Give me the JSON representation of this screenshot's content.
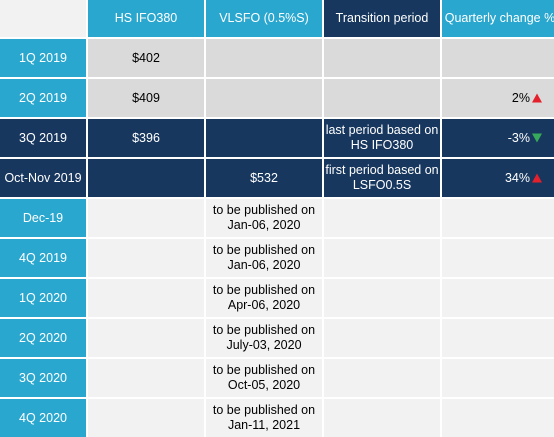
{
  "headers": [
    "",
    "HS IFO380",
    "VLSFO (0.5%S)",
    "Transition period",
    "Quarterly change %"
  ],
  "rows": [
    {
      "period": "1Q 2019",
      "hs": "$402",
      "vlsfo": "",
      "transition": "",
      "change": "",
      "arrow": ""
    },
    {
      "period": "2Q 2019",
      "hs": "$409",
      "vlsfo": "",
      "transition": "",
      "change": "2%",
      "arrow": "triangle-up-icon"
    },
    {
      "period": "3Q 2019",
      "hs": "$396",
      "vlsfo": "",
      "transition": [
        "last period based on",
        "HS IFO380"
      ],
      "change": "-3%",
      "arrow": "triangle-down-icon"
    },
    {
      "period": "Oct-Nov 2019",
      "hs": "",
      "vlsfo": "$532",
      "transition": [
        "first period based on",
        "LSFO0.5S"
      ],
      "change": "34%",
      "arrow": "triangle-up-icon"
    },
    {
      "period": "Dec-19",
      "hs": "",
      "vlsfo": [
        "to be published on",
        "Jan-06, 2020"
      ],
      "transition": "",
      "change": "",
      "arrow": ""
    },
    {
      "period": "4Q 2019",
      "hs": "",
      "vlsfo": [
        "to be published on",
        "Jan-06, 2020"
      ],
      "transition": "",
      "change": "",
      "arrow": ""
    },
    {
      "period": "1Q 2020",
      "hs": "",
      "vlsfo": [
        "to be published on",
        "Apr-06, 2020"
      ],
      "transition": "",
      "change": "",
      "arrow": ""
    },
    {
      "period": "2Q 2020",
      "hs": "",
      "vlsfo": [
        "to be published on",
        "July-03, 2020"
      ],
      "transition": "",
      "change": "",
      "arrow": ""
    },
    {
      "period": "3Q 2020",
      "hs": "",
      "vlsfo": [
        "to be published on",
        "Oct-05, 2020"
      ],
      "transition": "",
      "change": "",
      "arrow": ""
    },
    {
      "period": "4Q 2020",
      "hs": "",
      "vlsfo": [
        "to be published on",
        "Jan-11, 2021"
      ],
      "transition": "",
      "change": "",
      "arrow": ""
    }
  ],
  "colors": {
    "teal": "#2aa7cf",
    "navy": "#17375e",
    "grey": "#dadada",
    "light": "#f2f2f2",
    "up": "#e3202b",
    "down": "#36a95a"
  }
}
